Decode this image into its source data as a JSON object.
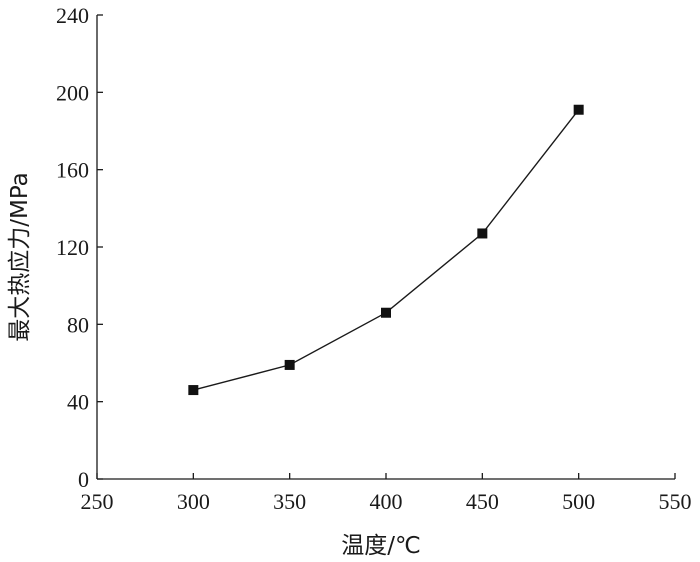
{
  "chart_data": {
    "type": "line",
    "title": "",
    "xlabel": "温度/℃",
    "ylabel": "最大热应力/MPa",
    "xlim": [
      250,
      550
    ],
    "ylim": [
      0,
      240
    ],
    "x_ticks": [
      250,
      300,
      350,
      400,
      450,
      500,
      550
    ],
    "y_ticks": [
      0,
      40,
      80,
      120,
      160,
      200,
      240
    ],
    "grid": false,
    "legend": "none",
    "marker": "square",
    "series": [
      {
        "x": [
          300,
          350,
          400,
          450,
          500
        ],
        "y": [
          46,
          59,
          86,
          127,
          191
        ]
      }
    ],
    "colors": {
      "line": "#1a1a1a",
      "marker": "#111111"
    }
  }
}
